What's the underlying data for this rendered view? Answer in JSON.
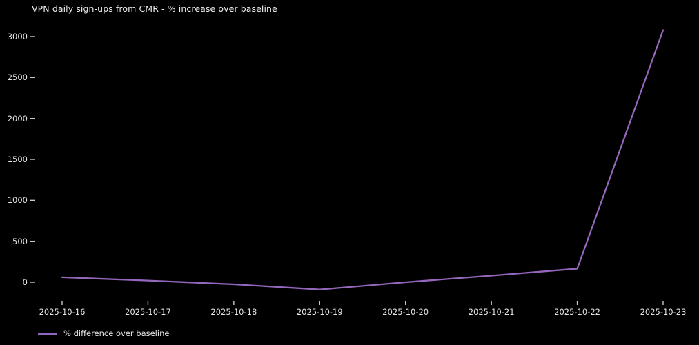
{
  "page": {
    "background_color": "#000000",
    "text_color": "#e6e6e6"
  },
  "chart_data": {
    "type": "line",
    "title": "VPN daily sign-ups from CMR - % increase over baseline",
    "categories": [
      "2025-10-16",
      "2025-10-17",
      "2025-10-18",
      "2025-10-19",
      "2025-10-20",
      "2025-10-21",
      "2025-10-22",
      "2025-10-23"
    ],
    "series": [
      {
        "name": "% difference over baseline",
        "color": "#9467bd",
        "values": [
          60,
          20,
          -25,
          -90,
          0,
          80,
          165,
          3080
        ]
      }
    ],
    "xlabel": "",
    "ylabel": "",
    "yticks": [
      0,
      500,
      1000,
      1500,
      2000,
      2500,
      3000
    ],
    "ylim": [
      -260,
      3140
    ],
    "grid": false,
    "spines": false,
    "legend_position": "lower-left",
    "tick_color": "#c9c9c9"
  }
}
